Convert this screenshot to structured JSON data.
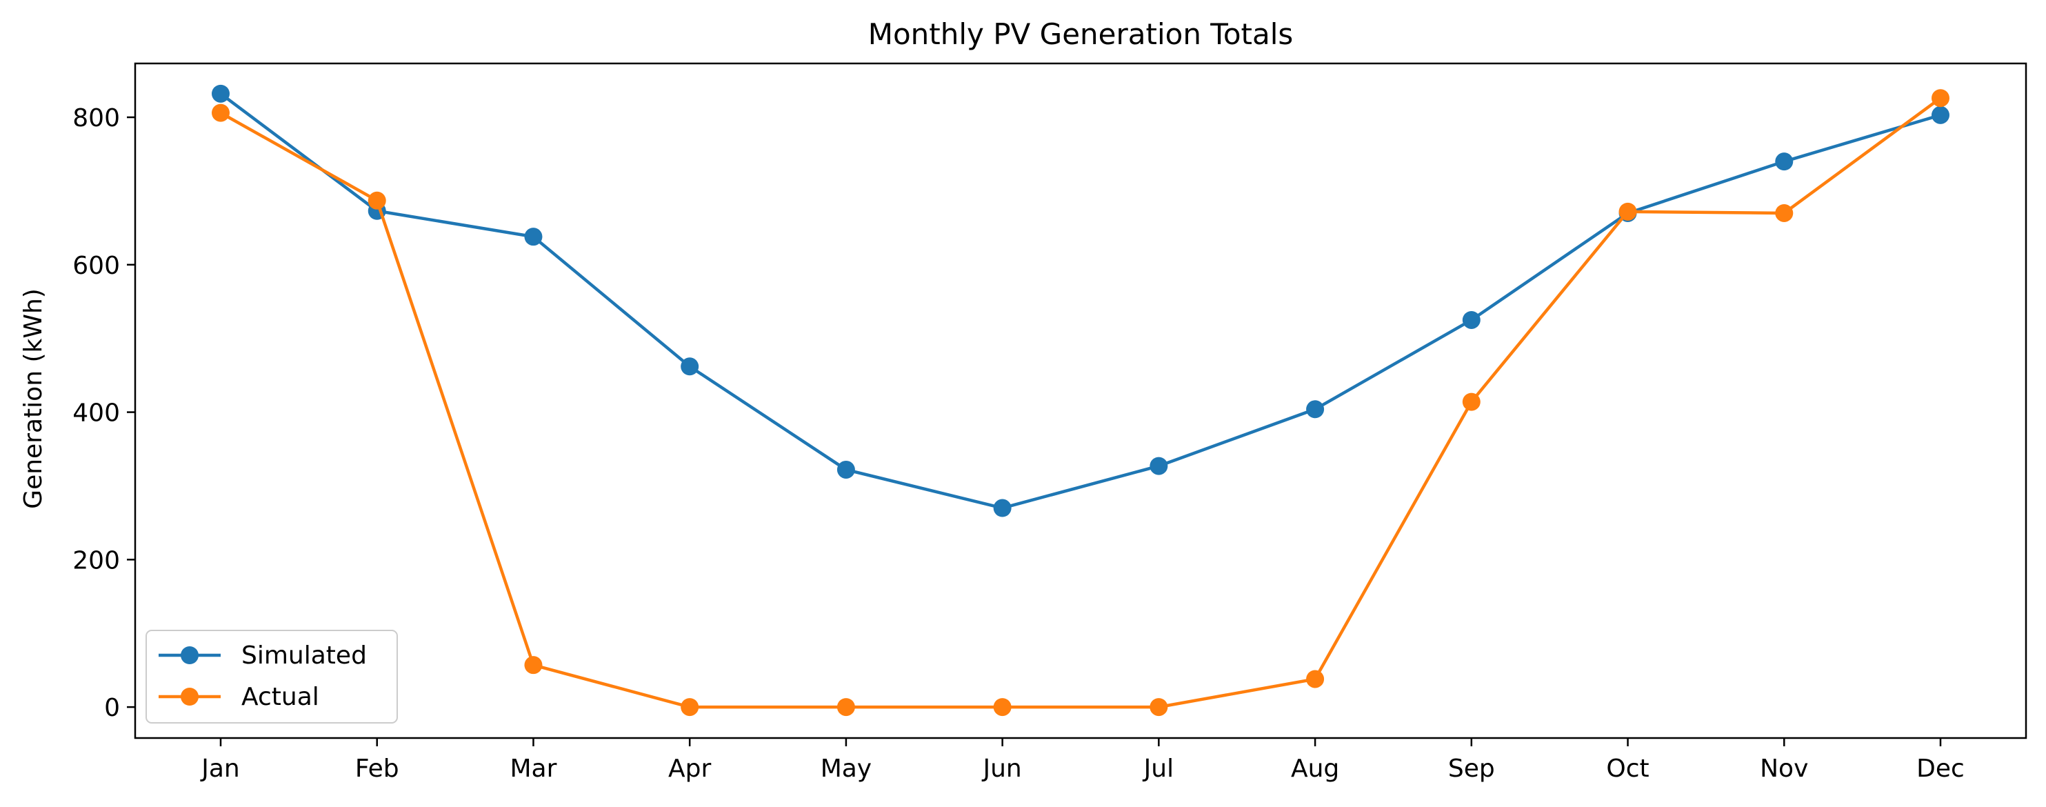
{
  "chart_data": {
    "type": "line",
    "title": "Monthly PV Generation Totals",
    "xlabel": "",
    "ylabel": "Generation (kWh)",
    "categories": [
      "Jan",
      "Feb",
      "Mar",
      "Apr",
      "May",
      "Jun",
      "Jul",
      "Aug",
      "Sep",
      "Oct",
      "Nov",
      "Dec"
    ],
    "ylim": [
      -42,
      873
    ],
    "yticks": [
      0,
      200,
      400,
      600,
      800
    ],
    "grid": false,
    "legend_position": "lower-left",
    "series": [
      {
        "name": "Simulated",
        "color": "#1f77b4",
        "marker": "circle",
        "values": [
          832,
          673,
          638,
          462,
          322,
          270,
          327,
          404,
          525,
          670,
          740,
          803
        ]
      },
      {
        "name": "Actual",
        "color": "#ff7f0e",
        "marker": "circle",
        "values": [
          806,
          687,
          57,
          0,
          0,
          0,
          0,
          38,
          414,
          672,
          670,
          826
        ]
      }
    ]
  }
}
